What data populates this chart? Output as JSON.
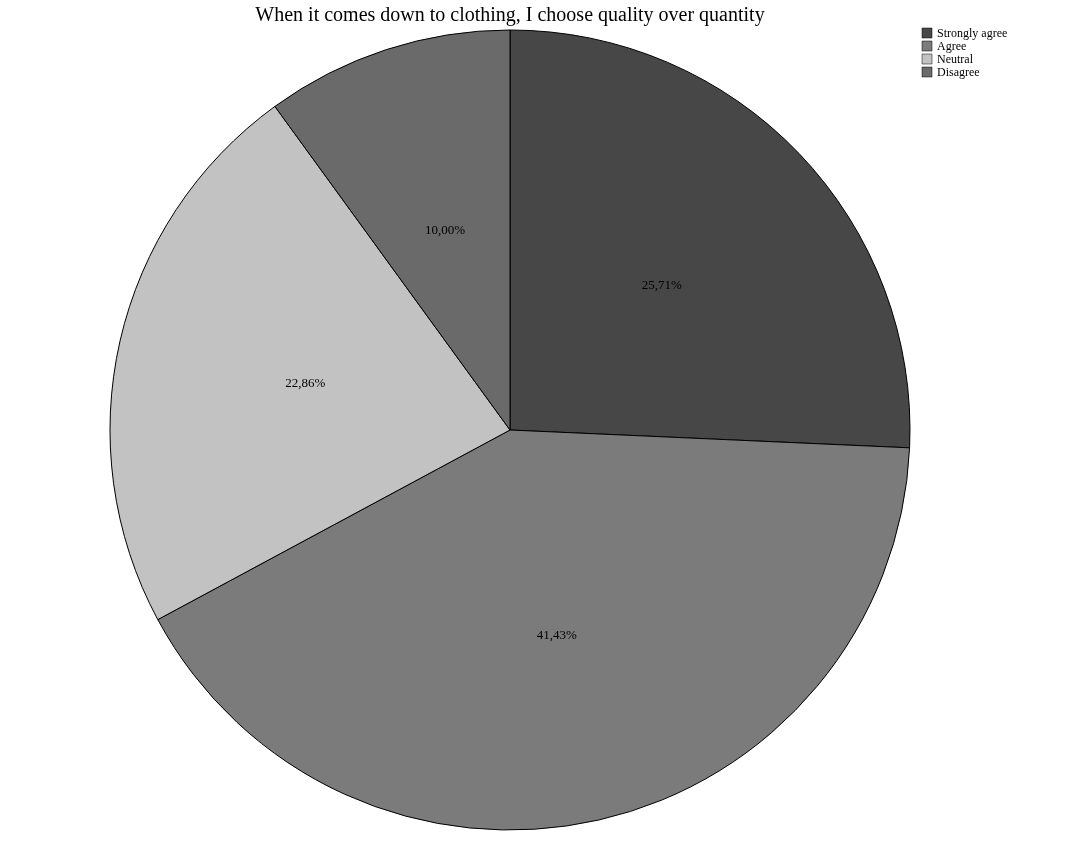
{
  "chart_data": {
    "type": "pie",
    "title": "When it comes down to clothing, I choose quality over quantity",
    "categories": [
      "Strongly agree",
      "Agree",
      "Neutral",
      "Disagree"
    ],
    "values": [
      25.71,
      41.43,
      22.86,
      10.0
    ],
    "colors": [
      "#474747",
      "#7b7b7b",
      "#c2c2c2",
      "#6a6a6a"
    ],
    "value_labels": [
      "25,71%",
      "41,43%",
      "22,86%",
      "10,00%"
    ],
    "legend": "top right"
  }
}
